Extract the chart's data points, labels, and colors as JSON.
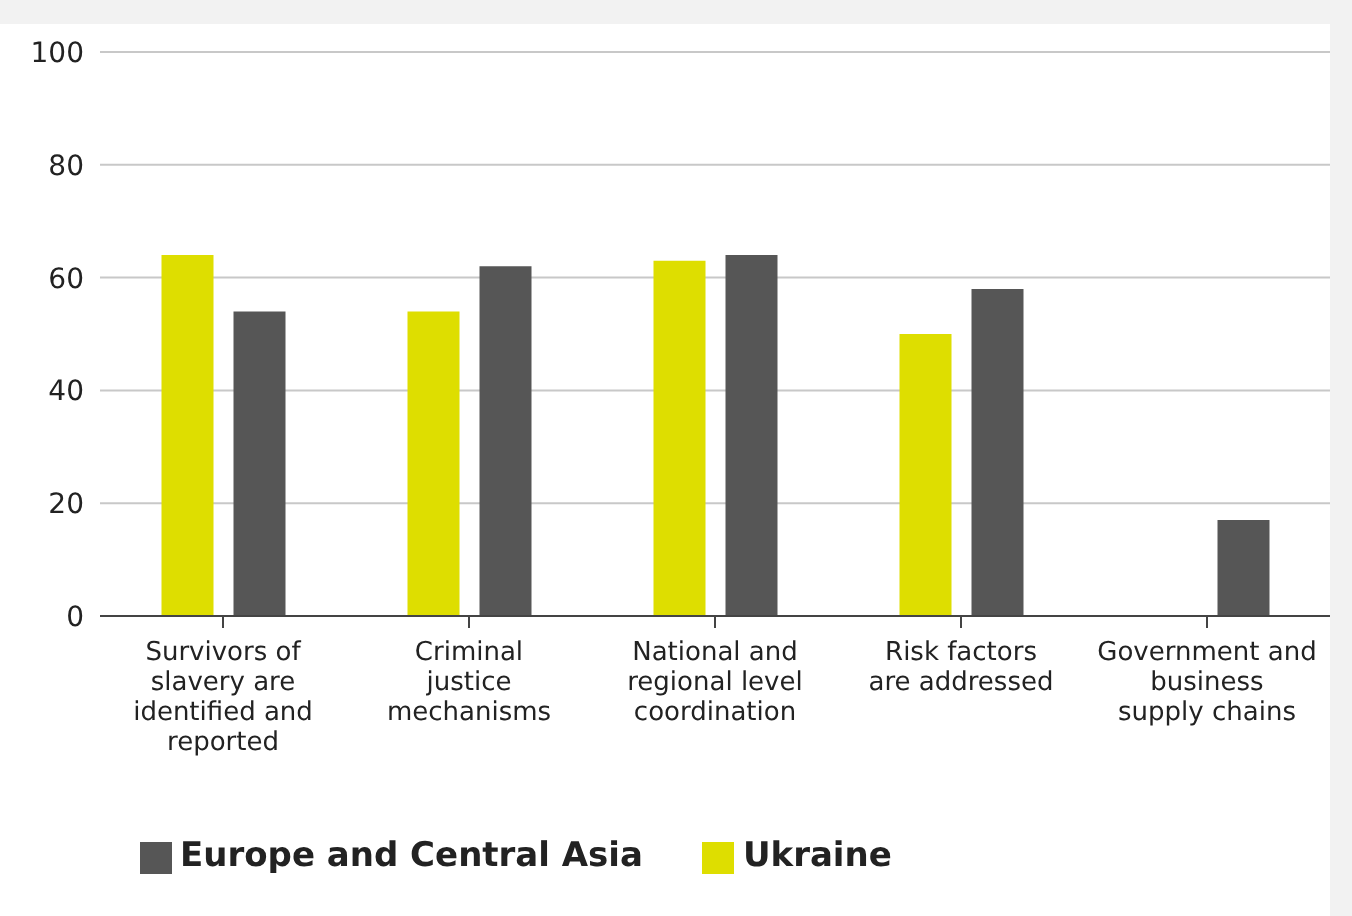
{
  "chart_data": {
    "type": "bar",
    "categories": [
      "Survivors of slavery are identified and reported",
      "Criminal justice mechanisms",
      "National and regional level coordination",
      "Risk factors are addressed",
      "Government and business supply chains"
    ],
    "series": [
      {
        "name": "Ukraine",
        "color": "#dede00",
        "values": [
          64,
          54,
          63,
          50,
          0
        ]
      },
      {
        "name": "Europe and Central Asia",
        "color": "#565656",
        "values": [
          54,
          62,
          64,
          58,
          17
        ]
      }
    ],
    "ylim": [
      0,
      100
    ],
    "yticks": [
      0,
      20,
      40,
      60,
      80,
      100
    ],
    "grid": "y",
    "legend": "bottom left"
  }
}
